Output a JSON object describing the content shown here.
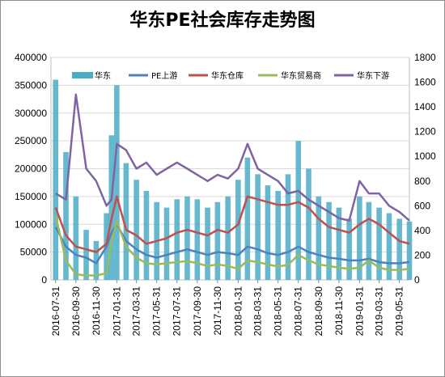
{
  "chart_data": {
    "type": "bar+line",
    "title": "华东PE社会库存走势图",
    "xlabel": "",
    "ylabel_left": "",
    "ylabel_right": "",
    "ylim_left": [
      0,
      400000
    ],
    "ylim_right": [
      0,
      1800
    ],
    "left_ticks": [
      "0",
      "50000",
      "100000",
      "150000",
      "200000",
      "250000",
      "300000",
      "350000",
      "400000"
    ],
    "right_ticks": [
      "0",
      "200",
      "400",
      "600",
      "800",
      "1000",
      "1200",
      "1400",
      "1600",
      "1800"
    ],
    "date_ticks": [
      "2016-07-31",
      "2016-09-30",
      "2016-11-30",
      "2017-01-31",
      "2017-03-31",
      "2017-05-31",
      "2017-07-31",
      "2017-09-30",
      "2017-11-30",
      "2018-01-31",
      "2018-03-31",
      "2018-05-31",
      "2018-07-31",
      "2018-09-30",
      "2018-11-30",
      "2019-01-31",
      "2019-03-31",
      "2019-05-31"
    ],
    "x_start": "2016-07-17",
    "x_end": "2019-06-30",
    "grid": true,
    "legend_position": "top",
    "x": [
      "2016-07-31",
      "2016-08-31",
      "2016-09-30",
      "2016-10-31",
      "2016-11-30",
      "2016-12-31",
      "2017-01-15",
      "2017-01-31",
      "2017-02-28",
      "2017-03-31",
      "2017-04-30",
      "2017-05-31",
      "2017-06-30",
      "2017-07-31",
      "2017-08-31",
      "2017-09-30",
      "2017-10-31",
      "2017-11-30",
      "2017-12-31",
      "2018-01-31",
      "2018-02-28",
      "2018-03-31",
      "2018-04-30",
      "2018-05-31",
      "2018-06-30",
      "2018-07-31",
      "2018-08-31",
      "2018-09-30",
      "2018-10-31",
      "2018-11-30",
      "2018-12-31",
      "2019-01-31",
      "2019-02-28",
      "2019-03-31",
      "2019-04-30",
      "2019-05-31",
      "2019-06-30"
    ],
    "series": [
      {
        "name": "华东",
        "type": "bar",
        "axis": "left",
        "color": "#4bacc6",
        "values": [
          360000,
          230000,
          150000,
          90000,
          70000,
          120000,
          260000,
          350000,
          210000,
          180000,
          160000,
          140000,
          130000,
          145000,
          150000,
          145000,
          130000,
          140000,
          150000,
          180000,
          220000,
          190000,
          170000,
          160000,
          190000,
          250000,
          200000,
          150000,
          140000,
          130000,
          110000,
          150000,
          140000,
          130000,
          120000,
          110000,
          105000
        ]
      },
      {
        "name": "PE上游",
        "type": "line",
        "axis": "left",
        "color": "#4f81bd",
        "values": [
          95000,
          60000,
          45000,
          40000,
          30000,
          60000,
          85000,
          100000,
          70000,
          55000,
          45000,
          40000,
          45000,
          50000,
          55000,
          50000,
          45000,
          50000,
          48000,
          45000,
          60000,
          55000,
          48000,
          45000,
          50000,
          60000,
          50000,
          45000,
          40000,
          38000,
          35000,
          35000,
          38000,
          32000,
          30000,
          30000,
          32000
        ]
      },
      {
        "name": "华东仓库",
        "type": "line",
        "axis": "left",
        "color": "#c0504d",
        "values": [
          130000,
          80000,
          60000,
          55000,
          50000,
          65000,
          110000,
          150000,
          90000,
          80000,
          65000,
          70000,
          75000,
          85000,
          90000,
          85000,
          80000,
          90000,
          85000,
          100000,
          150000,
          145000,
          140000,
          135000,
          135000,
          140000,
          130000,
          110000,
          95000,
          90000,
          85000,
          100000,
          110000,
          100000,
          85000,
          70000,
          65000
        ]
      },
      {
        "name": "华东贸易商",
        "type": "line",
        "axis": "left",
        "color": "#9bbb59",
        "values": [
          115000,
          35000,
          10000,
          8000,
          8000,
          12000,
          70000,
          105000,
          60000,
          40000,
          30000,
          28000,
          30000,
          32000,
          34000,
          30000,
          25000,
          28000,
          25000,
          20000,
          35000,
          32000,
          28000,
          24000,
          27000,
          45000,
          35000,
          28000,
          25000,
          22000,
          20000,
          22000,
          35000,
          22000,
          18000,
          18000,
          20000
        ]
      },
      {
        "name": "华东下游",
        "type": "line",
        "axis": "right",
        "color": "#8064a2",
        "values": [
          700,
          650,
          1500,
          900,
          800,
          600,
          650,
          1100,
          1050,
          900,
          950,
          850,
          900,
          950,
          900,
          850,
          800,
          850,
          820,
          900,
          1100,
          900,
          850,
          800,
          700,
          720,
          650,
          600,
          550,
          500,
          480,
          800,
          700,
          700,
          600,
          550,
          480
        ]
      }
    ]
  }
}
